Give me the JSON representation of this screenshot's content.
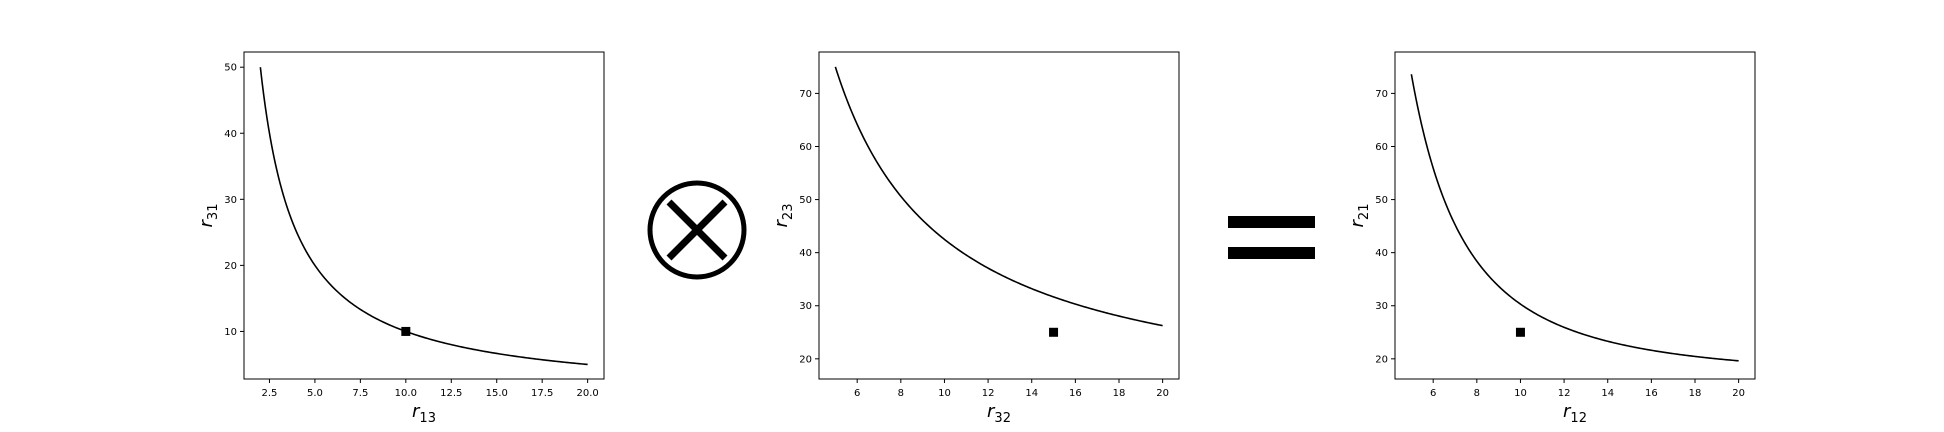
{
  "operators": {
    "times_symbol": "circled-times-icon",
    "equals_symbol": "equals-icon"
  },
  "chart_data": [
    {
      "type": "line",
      "xlabel_var": "r",
      "xlabel_sub": "13",
      "ylabel_var": "r",
      "ylabel_sub": "31",
      "xlim": [
        1.1,
        20.9
      ],
      "ylim": [
        2.8,
        52.3
      ],
      "xticks": [
        2.5,
        5.0,
        7.5,
        10.0,
        12.5,
        15.0,
        17.5,
        20.0
      ],
      "xtick_labels": [
        "2.5",
        "5.0",
        "7.5",
        "10.0",
        "12.5",
        "15.0",
        "17.5",
        "20.0"
      ],
      "yticks": [
        10,
        20,
        30,
        40,
        50
      ],
      "ytick_labels": [
        "10",
        "20",
        "30",
        "40",
        "50"
      ],
      "series": [
        {
          "x": [
            2,
            20
          ],
          "formula": "y = 100 / x",
          "color": "#000000"
        }
      ],
      "marker": {
        "x": 10,
        "y": 10,
        "shape": "square",
        "color": "#000000"
      },
      "grid": false
    },
    {
      "type": "line",
      "xlabel_var": "r",
      "xlabel_sub": "32",
      "ylabel_var": "r",
      "ylabel_sub": "23",
      "xlim": [
        4.25,
        20.75
      ],
      "ylim": [
        16.2,
        77.8
      ],
      "xticks": [
        6,
        8,
        10,
        12,
        14,
        16,
        18,
        20
      ],
      "xtick_labels": [
        "6",
        "8",
        "10",
        "12",
        "14",
        "16",
        "18",
        "20"
      ],
      "yticks": [
        20,
        30,
        40,
        50,
        60,
        70
      ],
      "ytick_labels": [
        "20",
        "30",
        "40",
        "50",
        "60",
        "70"
      ],
      "series": [
        {
          "x": [
            5,
            20
          ],
          "formula": "y = 10 + 325 / x",
          "color": "#000000"
        }
      ],
      "marker": {
        "x": 15,
        "y": 25,
        "shape": "square",
        "color": "#000000"
      },
      "grid": false
    },
    {
      "type": "line",
      "xlabel_var": "r",
      "xlabel_sub": "12",
      "ylabel_var": "r",
      "ylabel_sub": "21",
      "xlim": [
        4.25,
        20.75
      ],
      "ylim": [
        16.2,
        77.8
      ],
      "xticks": [
        6,
        8,
        10,
        12,
        14,
        16,
        18,
        20
      ],
      "xtick_labels": [
        "6",
        "8",
        "10",
        "12",
        "14",
        "16",
        "18",
        "20"
      ],
      "yticks": [
        20,
        30,
        40,
        50,
        60,
        70
      ],
      "ytick_labels": [
        "20",
        "30",
        "40",
        "50",
        "60",
        "70"
      ],
      "series": [
        {
          "x": [
            5,
            20
          ],
          "formula": "y = 16 + 1185/x^2 - 14 (approx)",
          "color": "#000000"
        }
      ],
      "marker": {
        "x": 10,
        "y": 25,
        "shape": "square",
        "color": "#000000"
      },
      "grid": false
    }
  ]
}
